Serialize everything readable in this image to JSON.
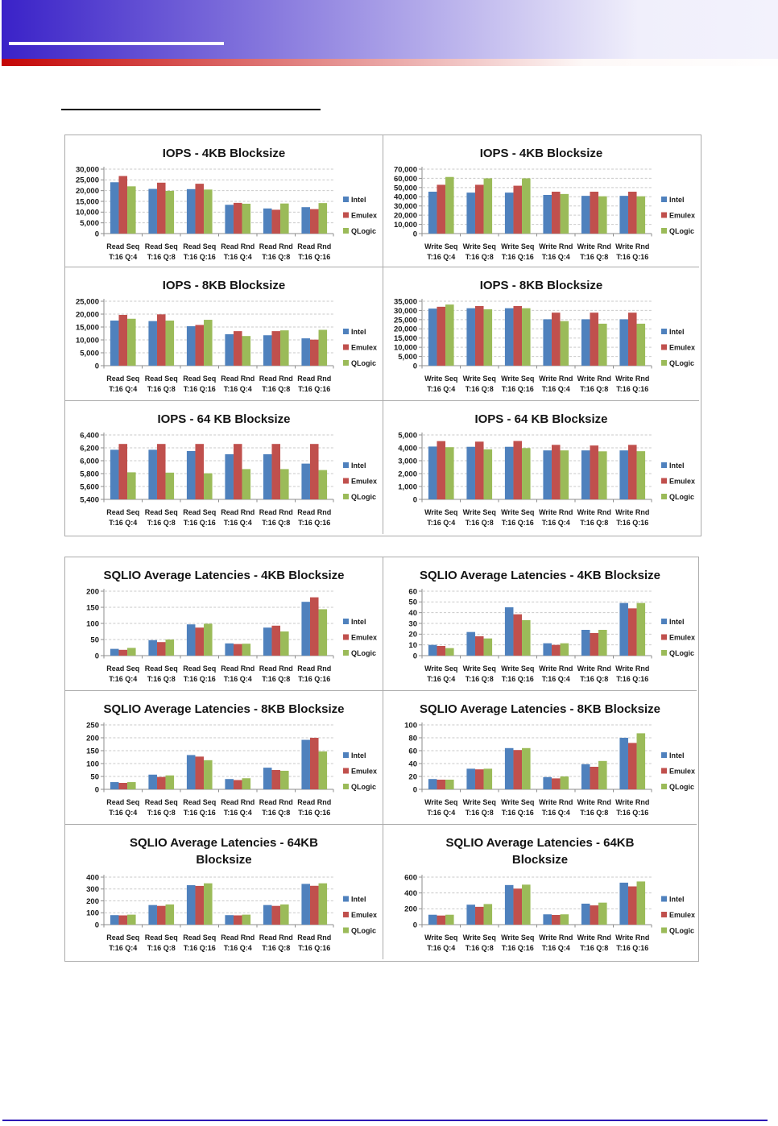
{
  "page": {
    "header": {
      "banner_blue": "#3920c6",
      "banner_red": "#c40606",
      "rule_white": "#ffffff"
    },
    "footer_rule_color": "#2d14b4",
    "table_border_color": "#ababab"
  },
  "series_colors": {
    "Intel": "#4f81bd",
    "Emulex": "#c0504d",
    "QLogic": "#9bbb59"
  },
  "chart_data": [
    {
      "id": "iops-4kb-read",
      "type": "bar",
      "title": "IOPS - 4KB Blocksize",
      "title_lines": [
        "IOPS - 4KB Blocksize"
      ],
      "categories": [
        [
          "Read Seq",
          "T:16 Q:4"
        ],
        [
          "Read Seq",
          "T:16 Q:8"
        ],
        [
          "Read Seq",
          "T:16 Q:16"
        ],
        [
          "Read Rnd",
          "T:16 Q:4"
        ],
        [
          "Read Rnd",
          "T:16 Q:8"
        ],
        [
          "Read Rnd",
          "T:16 Q:16"
        ]
      ],
      "series": [
        {
          "name": "Intel",
          "color": "#4f81bd",
          "values": [
            23900,
            20800,
            20700,
            13400,
            11700,
            12300
          ]
        },
        {
          "name": "Emulex",
          "color": "#c0504d",
          "values": [
            26800,
            23700,
            23200,
            14300,
            11100,
            11400
          ]
        },
        {
          "name": "QLogic",
          "color": "#9bbb59",
          "values": [
            22000,
            19900,
            20500,
            13900,
            14000,
            14200
          ]
        }
      ],
      "ylim": [
        0,
        30000
      ],
      "ystep": 5000,
      "grid": true,
      "legend_position": "right"
    },
    {
      "id": "iops-4kb-write",
      "type": "bar",
      "title": "IOPS - 4KB Blocksize",
      "title_lines": [
        "IOPS - 4KB Blocksize"
      ],
      "categories": [
        [
          "Write Seq",
          "T:16 Q:4"
        ],
        [
          "Write Seq",
          "T:16 Q:8"
        ],
        [
          "Write Seq",
          "T:16 Q:16"
        ],
        [
          "Write Rnd",
          "T:16 Q:4"
        ],
        [
          "Write Rnd",
          "T:16 Q:8"
        ],
        [
          "Write Rnd",
          "T:16 Q:16"
        ]
      ],
      "series": [
        {
          "name": "Intel",
          "color": "#4f81bd",
          "values": [
            45500,
            44500,
            44500,
            42000,
            41000,
            41000
          ]
        },
        {
          "name": "Emulex",
          "color": "#c0504d",
          "values": [
            53000,
            53000,
            52000,
            45500,
            45500,
            45500
          ]
        },
        {
          "name": "QLogic",
          "color": "#9bbb59",
          "values": [
            61500,
            60000,
            60000,
            43000,
            40500,
            40500
          ]
        }
      ],
      "ylim": [
        0,
        70000
      ],
      "ystep": 10000,
      "grid": true,
      "legend_position": "right"
    },
    {
      "id": "iops-8kb-read",
      "type": "bar",
      "title": "IOPS - 8KB Blocksize",
      "title_lines": [
        "IOPS - 8KB Blocksize"
      ],
      "categories": [
        [
          "Read Seq",
          "T:16 Q:4"
        ],
        [
          "Read Seq",
          "T:16 Q:8"
        ],
        [
          "Read Seq",
          "T:16 Q:16"
        ],
        [
          "Read Rnd",
          "T:16 Q:4"
        ],
        [
          "Read Rnd",
          "T:16 Q:8"
        ],
        [
          "Read Rnd",
          "T:16 Q:16"
        ]
      ],
      "series": [
        {
          "name": "Intel",
          "color": "#4f81bd",
          "values": [
            17500,
            17300,
            15300,
            12200,
            11800,
            10600
          ]
        },
        {
          "name": "Emulex",
          "color": "#c0504d",
          "values": [
            19700,
            19900,
            15800,
            13400,
            13400,
            10100
          ]
        },
        {
          "name": "QLogic",
          "color": "#9bbb59",
          "values": [
            18200,
            17500,
            17800,
            11500,
            13700,
            13900
          ]
        }
      ],
      "ylim": [
        0,
        25000
      ],
      "ystep": 5000,
      "grid": true,
      "legend_position": "right"
    },
    {
      "id": "iops-8kb-write",
      "type": "bar",
      "title": "IOPS - 8KB Blocksize",
      "title_lines": [
        "IOPS - 8KB Blocksize"
      ],
      "categories": [
        [
          "Write Seq",
          "T:16 Q:4"
        ],
        [
          "Write Seq",
          "T:16 Q:8"
        ],
        [
          "Write Seq",
          "T:16 Q:16"
        ],
        [
          "Write Rnd",
          "T:16 Q:4"
        ],
        [
          "Write Rnd",
          "T:16 Q:8"
        ],
        [
          "Write Rnd",
          "T:16 Q:16"
        ]
      ],
      "series": [
        {
          "name": "Intel",
          "color": "#4f81bd",
          "values": [
            31000,
            31200,
            31200,
            25200,
            25200,
            25200
          ]
        },
        {
          "name": "Emulex",
          "color": "#c0504d",
          "values": [
            32000,
            32400,
            32400,
            28800,
            28800,
            28800
          ]
        },
        {
          "name": "QLogic",
          "color": "#9bbb59",
          "values": [
            33200,
            30600,
            31200,
            24200,
            22800,
            22800
          ]
        }
      ],
      "ylim": [
        0,
        35000
      ],
      "ystep": 5000,
      "grid": true,
      "legend_position": "right"
    },
    {
      "id": "iops-64kb-read",
      "type": "bar",
      "title": "IOPS - 64 KB Blocksize",
      "title_lines": [
        "IOPS - 64 KB Blocksize"
      ],
      "categories": [
        [
          "Read Seq",
          "T:16 Q:4"
        ],
        [
          "Read Seq",
          "T:16 Q:8"
        ],
        [
          "Read Seq",
          "T:16 Q:16"
        ],
        [
          "Read Rnd",
          "T:16 Q:4"
        ],
        [
          "Read Rnd",
          "T:16 Q:8"
        ],
        [
          "Read Rnd",
          "T:16 Q:16"
        ]
      ],
      "series": [
        {
          "name": "Intel",
          "color": "#4f81bd",
          "values": [
            6170,
            6170,
            6150,
            6100,
            6100,
            5955
          ]
        },
        {
          "name": "Emulex",
          "color": "#c0504d",
          "values": [
            6260,
            6260,
            6260,
            6260,
            6260,
            6260
          ]
        },
        {
          "name": "QLogic",
          "color": "#9bbb59",
          "values": [
            5820,
            5815,
            5805,
            5870,
            5870,
            5855
          ]
        }
      ],
      "ylim": [
        5400,
        6400
      ],
      "ystep": 200,
      "grid": true,
      "legend_position": "right"
    },
    {
      "id": "iops-64kb-write",
      "type": "bar",
      "title": "IOPS - 64 KB Blocksize",
      "title_lines": [
        "IOPS - 64 KB Blocksize"
      ],
      "categories": [
        [
          "Write Seq",
          "T:16 Q:4"
        ],
        [
          "Write Seq",
          "T:16 Q:8"
        ],
        [
          "Write Seq",
          "T:16 Q:16"
        ],
        [
          "Write Rnd",
          "T:16 Q:4"
        ],
        [
          "Write Rnd",
          "T:16 Q:8"
        ],
        [
          "Write Rnd",
          "T:16 Q:16"
        ]
      ],
      "series": [
        {
          "name": "Intel",
          "color": "#4f81bd",
          "values": [
            4100,
            4080,
            4080,
            3800,
            3800,
            3800
          ]
        },
        {
          "name": "Emulex",
          "color": "#c0504d",
          "values": [
            4520,
            4480,
            4530,
            4230,
            4180,
            4230
          ]
        },
        {
          "name": "QLogic",
          "color": "#9bbb59",
          "values": [
            4050,
            3880,
            3980,
            3800,
            3730,
            3740
          ]
        }
      ],
      "ylim": [
        0,
        5000
      ],
      "ystep": 1000,
      "grid": true,
      "legend_position": "right"
    },
    {
      "id": "latency-4kb-read",
      "type": "bar",
      "title": "SQLIO Average Latencies - 4KB Blocksize",
      "title_lines": [
        "SQLIO Average Latencies - 4KB Blocksize"
      ],
      "categories": [
        [
          "Read Seq",
          "T:16 Q:4"
        ],
        [
          "Read Seq",
          "T:16 Q:8"
        ],
        [
          "Read Seq",
          "T:16 Q:16"
        ],
        [
          "Read Rnd",
          "T:16 Q:4"
        ],
        [
          "Read Rnd",
          "T:16 Q:8"
        ],
        [
          "Read Rnd",
          "T:16 Q:16"
        ]
      ],
      "series": [
        {
          "name": "Intel",
          "color": "#4f81bd",
          "values": [
            21,
            48,
            97,
            38,
            87,
            167
          ]
        },
        {
          "name": "Emulex",
          "color": "#c0504d",
          "values": [
            18,
            42,
            87,
            36,
            93,
            181
          ]
        },
        {
          "name": "QLogic",
          "color": "#9bbb59",
          "values": [
            24,
            50,
            99,
            37,
            75,
            144
          ]
        }
      ],
      "ylim": [
        0,
        200
      ],
      "ystep": 50,
      "grid": true,
      "legend_position": "right"
    },
    {
      "id": "latency-4kb-write",
      "type": "bar",
      "title": "SQLIO Average Latencies - 4KB Blocksize",
      "title_lines": [
        "SQLIO Average Latencies - 4KB Blocksize"
      ],
      "categories": [
        [
          "Write Seq",
          "T:16 Q:4"
        ],
        [
          "Write Seq",
          "T:16 Q:8"
        ],
        [
          "Write Seq",
          "T:16 Q:16"
        ],
        [
          "Write Rnd",
          "T:16 Q:4"
        ],
        [
          "Write Rnd",
          "T:16 Q:8"
        ],
        [
          "Write Rnd",
          "T:16 Q:16"
        ]
      ],
      "series": [
        {
          "name": "Intel",
          "color": "#4f81bd",
          "values": [
            10,
            22,
            45,
            11.5,
            24,
            49
          ]
        },
        {
          "name": "Emulex",
          "color": "#c0504d",
          "values": [
            9,
            18,
            38.5,
            10,
            21,
            44
          ]
        },
        {
          "name": "QLogic",
          "color": "#9bbb59",
          "values": [
            7,
            16,
            33,
            11.5,
            24,
            49
          ]
        }
      ],
      "ylim": [
        0,
        60
      ],
      "ystep": 10,
      "grid": true,
      "legend_position": "right"
    },
    {
      "id": "latency-8kb-read",
      "type": "bar",
      "title": "SQLIO Average Latencies - 8KB Blocksize",
      "title_lines": [
        "SQLIO Average Latencies - 8KB Blocksize"
      ],
      "categories": [
        [
          "Read Seq",
          "T:16 Q:4"
        ],
        [
          "Read Seq",
          "T:16 Q:8"
        ],
        [
          "Read Seq",
          "T:16 Q:16"
        ],
        [
          "Read Rnd",
          "T:16 Q:4"
        ],
        [
          "Read Rnd",
          "T:16 Q:8"
        ],
        [
          "Read Rnd",
          "T:16 Q:16"
        ]
      ],
      "series": [
        {
          "name": "Intel",
          "color": "#4f81bd",
          "values": [
            28,
            57,
            133,
            40,
            84,
            192
          ]
        },
        {
          "name": "Emulex",
          "color": "#c0504d",
          "values": [
            25,
            48,
            127,
            36,
            75,
            200
          ]
        },
        {
          "name": "QLogic",
          "color": "#9bbb59",
          "values": [
            28,
            54,
            113,
            43,
            72,
            147
          ]
        }
      ],
      "ylim": [
        0,
        250
      ],
      "ystep": 50,
      "grid": true,
      "legend_position": "right"
    },
    {
      "id": "latency-8kb-write",
      "type": "bar",
      "title": "SQLIO Average Latencies - 8KB Blocksize",
      "title_lines": [
        "SQLIO Average Latencies - 8KB Blocksize"
      ],
      "categories": [
        [
          "Write Seq",
          "T:16 Q:4"
        ],
        [
          "Write Seq",
          "T:16 Q:8"
        ],
        [
          "Write Seq",
          "T:16 Q:16"
        ],
        [
          "Write Rnd",
          "T:16 Q:4"
        ],
        [
          "Write Rnd",
          "T:16 Q:8"
        ],
        [
          "Write Rnd",
          "T:16 Q:16"
        ]
      ],
      "series": [
        {
          "name": "Intel",
          "color": "#4f81bd",
          "values": [
            16,
            32,
            64,
            19,
            39,
            80
          ]
        },
        {
          "name": "Emulex",
          "color": "#c0504d",
          "values": [
            15,
            31,
            61,
            17,
            35,
            72
          ]
        },
        {
          "name": "QLogic",
          "color": "#9bbb59",
          "values": [
            15,
            32,
            64,
            20,
            44,
            87
          ]
        }
      ],
      "ylim": [
        0,
        100
      ],
      "ystep": 20,
      "grid": true,
      "legend_position": "right"
    },
    {
      "id": "latency-64kb-read",
      "type": "bar",
      "title": "SQLIO Average Latencies - 64KB Blocksize",
      "title_lines": [
        "SQLIO Average Latencies - 64KB",
        "Blocksize"
      ],
      "categories": [
        [
          "Read Seq",
          "T:16 Q:4"
        ],
        [
          "Read Seq",
          "T:16 Q:8"
        ],
        [
          "Read Seq",
          "T:16 Q:16"
        ],
        [
          "Read Rnd",
          "T:16 Q:4"
        ],
        [
          "Read Rnd",
          "T:16 Q:8"
        ],
        [
          "Read Rnd",
          "T:16 Q:16"
        ]
      ],
      "series": [
        {
          "name": "Intel",
          "color": "#4f81bd",
          "values": [
            80,
            165,
            332,
            80,
            165,
            343
          ]
        },
        {
          "name": "Emulex",
          "color": "#c0504d",
          "values": [
            78,
            158,
            326,
            78,
            158,
            327
          ]
        },
        {
          "name": "QLogic",
          "color": "#9bbb59",
          "values": [
            84,
            170,
            348,
            84,
            170,
            348
          ]
        }
      ],
      "ylim": [
        0,
        400
      ],
      "ystep": 100,
      "grid": true,
      "legend_position": "right"
    },
    {
      "id": "latency-64kb-write",
      "type": "bar",
      "title": "SQLIO Average Latencies - 64KB Blocksize",
      "title_lines": [
        "SQLIO Average Latencies - 64KB",
        "Blocksize"
      ],
      "categories": [
        [
          "Write Seq",
          "T:16 Q:4"
        ],
        [
          "Write Seq",
          "T:16 Q:8"
        ],
        [
          "Write Seq",
          "T:16 Q:16"
        ],
        [
          "Write Rnd",
          "T:16 Q:4"
        ],
        [
          "Write Rnd",
          "T:16 Q:8"
        ],
        [
          "Write Rnd",
          "T:16 Q:16"
        ]
      ],
      "series": [
        {
          "name": "Intel",
          "color": "#4f81bd",
          "values": [
            125,
            252,
            500,
            130,
            265,
            530
          ]
        },
        {
          "name": "Emulex",
          "color": "#c0504d",
          "values": [
            115,
            225,
            455,
            122,
            243,
            483
          ]
        },
        {
          "name": "QLogic",
          "color": "#9bbb59",
          "values": [
            125,
            260,
            505,
            130,
            278,
            545
          ]
        }
      ],
      "ylim": [
        0,
        600
      ],
      "ystep": 200,
      "grid": true,
      "legend_position": "right"
    }
  ],
  "tables": [
    {
      "name": "iops-charts",
      "chart_ids": [
        "iops-4kb-read",
        "iops-4kb-write",
        "iops-8kb-read",
        "iops-8kb-write",
        "iops-64kb-read",
        "iops-64kb-write"
      ]
    },
    {
      "name": "latency-charts",
      "chart_ids": [
        "latency-4kb-read",
        "latency-4kb-write",
        "latency-8kb-read",
        "latency-8kb-write",
        "latency-64kb-read",
        "latency-64kb-write"
      ]
    }
  ]
}
